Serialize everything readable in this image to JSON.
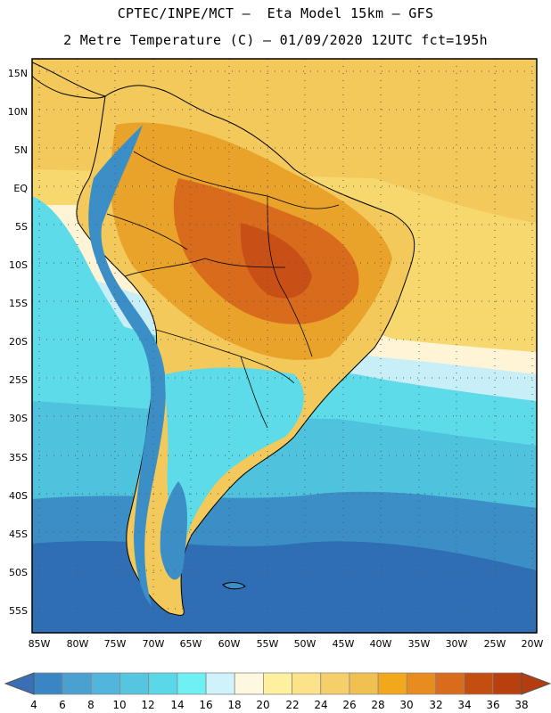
{
  "header": {
    "title_line1": "CPTEC/INPE/MCT –  Eta Model 15km – GFS",
    "title_line2": "2 Metre Temperature (C) – 01/09/2020 12UTC fct=195h"
  },
  "map": {
    "lat_ticks": [
      "15N",
      "10N",
      "5N",
      "EQ",
      "5S",
      "10S",
      "15S",
      "20S",
      "25S",
      "30S",
      "35S",
      "40S",
      "45S",
      "50S",
      "55S"
    ],
    "lon_ticks": [
      "85W",
      "80W",
      "75W",
      "70W",
      "65W",
      "60W",
      "55W",
      "50W",
      "45W",
      "40W",
      "35W",
      "30W",
      "25W",
      "20W"
    ],
    "regions": [
      {
        "name": "ocean-south-cold",
        "color": "#2f6db4"
      },
      {
        "name": "ocean-south-mid",
        "color": "#3c8fc6"
      },
      {
        "name": "ocean-band-14",
        "color": "#4fc3de"
      },
      {
        "name": "ocean-band-16",
        "color": "#5ddbe8"
      },
      {
        "name": "ocean-band-18",
        "color": "#c8eef8"
      },
      {
        "name": "ocean-band-20",
        "color": "#fff4d6"
      },
      {
        "name": "ocean-north-warm",
        "color": "#f6d86e"
      },
      {
        "name": "ocean-north-24",
        "color": "#f2c95a"
      },
      {
        "name": "land-hot-30",
        "color": "#e9a22a"
      },
      {
        "name": "land-hot-34",
        "color": "#d96b1c"
      },
      {
        "name": "land-hot-36",
        "color": "#c85016"
      },
      {
        "name": "andes-cold",
        "color": "#3c8fc6"
      }
    ]
  },
  "colorbar": {
    "labels": [
      "4",
      "6",
      "8",
      "10",
      "12",
      "14",
      "16",
      "18",
      "20",
      "22",
      "24",
      "26",
      "28",
      "30",
      "32",
      "34",
      "36",
      "38"
    ],
    "colors": [
      "#2f6db4",
      "#3a86c5",
      "#4aa0cf",
      "#52b6dc",
      "#56c6e0",
      "#5ad8e8",
      "#6ff0f4",
      "#d0f2fb",
      "#fff8e0",
      "#fff0a0",
      "#fce38a",
      "#f5d06a",
      "#f0c050",
      "#f2a81c",
      "#e88c20",
      "#d96b1c",
      "#c44d10",
      "#b8400f"
    ]
  }
}
